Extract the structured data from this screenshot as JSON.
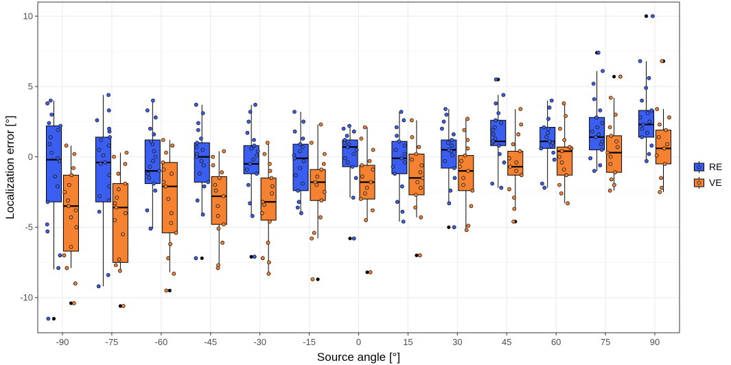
{
  "chart_data": {
    "type": "box",
    "title": "",
    "xlabel": "Source angle [°]",
    "ylabel": "Localization error [°]",
    "ylim": [
      -12.5,
      11
    ],
    "yticks": [
      -10,
      -5,
      0,
      5,
      10
    ],
    "grid": true,
    "legend_position": "right",
    "categories": [
      "-90",
      "-75",
      "-60",
      "-45",
      "-30",
      "-15",
      "0",
      "15",
      "30",
      "45",
      "60",
      "75",
      "90"
    ],
    "series": [
      {
        "name": "RE",
        "color": "#3a5ef0",
        "boxes": [
          {
            "min": -8.0,
            "q1": -3.2,
            "median": -0.2,
            "q3": 2.2,
            "max": 4.0,
            "outliers": [
              -11.5
            ]
          },
          {
            "min": -9.2,
            "q1": -3.2,
            "median": -0.4,
            "q3": 1.4,
            "max": 4.4,
            "outliers": []
          },
          {
            "min": -5.1,
            "q1": -1.9,
            "median": -1.0,
            "q3": 1.2,
            "max": 4.0,
            "outliers": []
          },
          {
            "min": -4.1,
            "q1": -1.8,
            "median": 0.0,
            "q3": 1.0,
            "max": 3.7,
            "outliers": [
              -7.2
            ]
          },
          {
            "min": -4.2,
            "q1": -1.2,
            "median": -0.5,
            "q3": 0.8,
            "max": 3.7,
            "outliers": [
              -7.1
            ]
          },
          {
            "min": -4.0,
            "q1": -2.4,
            "median": -0.1,
            "q3": 0.9,
            "max": 3.2,
            "outliers": []
          },
          {
            "min": -2.9,
            "q1": -0.7,
            "median": 0.7,
            "q3": 1.2,
            "max": 2.2,
            "outliers": [
              -5.8
            ]
          },
          {
            "min": -4.6,
            "q1": -1.2,
            "median": -0.1,
            "q3": 1.1,
            "max": 3.2,
            "outliers": []
          },
          {
            "min": -3.3,
            "q1": -0.8,
            "median": 0.5,
            "q3": 1.2,
            "max": 3.4,
            "outliers": [
              -5.0
            ]
          },
          {
            "min": -2.2,
            "q1": 0.8,
            "median": 1.1,
            "q3": 2.6,
            "max": 4.4,
            "outliers": [
              5.5
            ]
          },
          {
            "min": -2.2,
            "q1": 0.6,
            "median": 1.1,
            "q3": 2.1,
            "max": 4.0,
            "outliers": []
          },
          {
            "min": -1.0,
            "q1": 0.5,
            "median": 1.4,
            "q3": 2.8,
            "max": 6.1,
            "outliers": [
              7.4
            ]
          },
          {
            "min": -0.3,
            "q1": 1.4,
            "median": 2.3,
            "q3": 3.3,
            "max": 6.8,
            "outliers": [
              10.0
            ]
          }
        ],
        "points": [
          [
            -11.5,
            -7.9,
            -7.0,
            -5.3,
            -4.8,
            -3.2,
            -2.1,
            -1.4,
            -0.3,
            -0.1,
            0.3,
            0.9,
            1.4,
            1.9,
            2.2,
            2.4,
            3.0,
            3.8,
            4.0
          ],
          [
            -9.2,
            -8.4,
            -3.9,
            -3.1,
            -2.8,
            -2.1,
            -1.3,
            -0.5,
            -0.4,
            0.1,
            0.5,
            0.8,
            1.2,
            1.4,
            1.8,
            2.0,
            2.6,
            3.3,
            4.4
          ],
          [
            -5.1,
            -3.8,
            -2.4,
            -1.9,
            -1.5,
            -1.2,
            -1.0,
            -0.7,
            -0.3,
            0.0,
            0.4,
            0.9,
            1.1,
            1.6,
            2.0,
            2.8,
            3.3,
            4.0
          ],
          [
            -7.2,
            -4.1,
            -3.1,
            -2.1,
            -1.8,
            -1.2,
            -0.6,
            -0.3,
            0.0,
            0.2,
            0.5,
            0.7,
            1.0,
            1.3,
            1.9,
            2.4,
            3.1,
            3.7
          ],
          [
            -7.1,
            -4.2,
            -3.3,
            -2.0,
            -1.2,
            -0.9,
            -0.5,
            -0.2,
            0.1,
            0.4,
            0.6,
            0.8,
            1.2,
            1.7,
            2.5,
            3.2,
            3.7
          ],
          [
            -4.0,
            -3.6,
            -3.2,
            -2.4,
            -1.9,
            -1.3,
            -0.8,
            -0.3,
            -0.1,
            0.1,
            0.4,
            0.7,
            0.9,
            1.3,
            1.8,
            2.5,
            3.2
          ],
          [
            -5.8,
            -2.9,
            -1.5,
            -0.7,
            -0.4,
            -0.1,
            0.2,
            0.5,
            0.7,
            0.9,
            1.0,
            1.2,
            1.5,
            1.8,
            2.0,
            2.2
          ],
          [
            -4.6,
            -3.9,
            -3.2,
            -2.1,
            -1.2,
            -0.7,
            -0.4,
            -0.1,
            0.2,
            0.5,
            0.8,
            1.1,
            1.5,
            2.1,
            2.6,
            3.2
          ],
          [
            -5.0,
            -3.3,
            -2.4,
            -1.5,
            -0.8,
            -0.3,
            0.1,
            0.4,
            0.5,
            0.8,
            1.0,
            1.2,
            1.6,
            2.0,
            2.5,
            3.0,
            3.4
          ],
          [
            -2.2,
            -1.9,
            -0.4,
            0.2,
            0.8,
            1.0,
            1.1,
            1.3,
            1.6,
            1.9,
            2.1,
            2.4,
            2.6,
            3.1,
            3.8,
            4.4,
            5.5
          ],
          [
            -2.2,
            -1.9,
            -0.2,
            0.3,
            0.6,
            0.8,
            1.0,
            1.1,
            1.4,
            1.7,
            2.0,
            2.1,
            2.7,
            3.5,
            4.0
          ],
          [
            -1.0,
            -0.6,
            -0.1,
            0.5,
            0.9,
            1.1,
            1.4,
            1.6,
            1.8,
            2.1,
            2.4,
            2.8,
            3.3,
            4.1,
            5.2,
            6.1,
            7.4
          ],
          [
            -0.3,
            0.2,
            0.8,
            1.4,
            1.7,
            2.0,
            2.3,
            2.5,
            2.8,
            3.1,
            3.3,
            4.0,
            4.9,
            5.6,
            6.8,
            10.0
          ]
        ]
      },
      {
        "name": "VE",
        "color": "#f58231",
        "boxes": [
          {
            "min": -7.9,
            "q1": -6.7,
            "median": -3.5,
            "q3": -1.3,
            "max": 0.8,
            "outliers": [
              -10.4
            ]
          },
          {
            "min": -8.1,
            "q1": -7.5,
            "median": -3.6,
            "q3": -1.9,
            "max": 0.3,
            "outliers": [
              -10.6
            ]
          },
          {
            "min": -8.2,
            "q1": -5.4,
            "median": -2.1,
            "q3": -0.4,
            "max": 1.2,
            "outliers": [
              -9.5
            ]
          },
          {
            "min": -7.8,
            "q1": -4.8,
            "median": -2.8,
            "q3": -1.4,
            "max": 0.4,
            "outliers": []
          },
          {
            "min": -8.3,
            "q1": -4.5,
            "median": -3.2,
            "q3": -1.5,
            "max": 1.0,
            "outliers": []
          },
          {
            "min": -5.8,
            "q1": -3.1,
            "median": -1.8,
            "q3": -0.9,
            "max": 2.3,
            "outliers": [
              -8.7
            ]
          },
          {
            "min": -4.5,
            "q1": -3.0,
            "median": -1.8,
            "q3": -0.6,
            "max": 2.1,
            "outliers": [
              -8.2
            ]
          },
          {
            "min": -4.3,
            "q1": -2.7,
            "median": -1.5,
            "q3": 0.2,
            "max": 2.6,
            "outliers": [
              -7.0
            ]
          },
          {
            "min": -5.2,
            "q1": -2.4,
            "median": -1.0,
            "q3": 0.1,
            "max": 2.7,
            "outliers": []
          },
          {
            "min": -3.7,
            "q1": -1.3,
            "median": -0.7,
            "q3": 0.4,
            "max": 3.4,
            "outliers": [
              -4.6
            ]
          },
          {
            "min": -3.3,
            "q1": -1.3,
            "median": 0.4,
            "q3": 0.7,
            "max": 3.8,
            "outliers": []
          },
          {
            "min": -2.4,
            "q1": -1.1,
            "median": 0.3,
            "q3": 1.5,
            "max": 4.2,
            "outliers": [
              5.7
            ]
          },
          {
            "min": -2.5,
            "q1": -0.5,
            "median": 0.6,
            "q3": 1.9,
            "max": 3.4,
            "outliers": [
              6.8
            ]
          }
        ],
        "points": [
          [
            -10.4,
            -9.0,
            -7.9,
            -7.0,
            -6.4,
            -5.0,
            -4.3,
            -3.8,
            -3.5,
            -3.1,
            -2.5,
            -2.0,
            -1.3,
            -0.8,
            0.2,
            0.8
          ],
          [
            -10.6,
            -8.1,
            -7.7,
            -7.3,
            -5.5,
            -4.5,
            -4.0,
            -3.6,
            -3.3,
            -2.9,
            -2.3,
            -1.9,
            -1.2,
            -0.5,
            0.0,
            0.3
          ],
          [
            -9.5,
            -8.3,
            -7.2,
            -6.2,
            -5.4,
            -4.7,
            -4.0,
            -3.0,
            -2.1,
            -1.8,
            -1.2,
            -0.9,
            -0.4,
            0.3,
            0.8,
            1.2
          ],
          [
            -7.9,
            -7.7,
            -6.1,
            -5.1,
            -4.8,
            -4.2,
            -3.5,
            -2.8,
            -2.4,
            -2.0,
            -1.5,
            -1.1,
            -0.6,
            0.0,
            0.4
          ],
          [
            -8.3,
            -7.5,
            -7.2,
            -6.1,
            -4.6,
            -4.0,
            -3.4,
            -3.2,
            -2.6,
            -2.1,
            -1.5,
            -1.0,
            -0.5,
            0.2,
            1.0
          ],
          [
            -8.7,
            -5.8,
            -5.4,
            -4.3,
            -3.1,
            -2.5,
            -2.0,
            -1.8,
            -1.4,
            -0.9,
            -0.5,
            0.2,
            1.0,
            2.3
          ],
          [
            -8.2,
            -4.5,
            -3.8,
            -3.0,
            -2.6,
            -2.2,
            -1.8,
            -1.4,
            -0.9,
            -0.6,
            -0.3,
            0.5,
            1.3,
            2.1
          ],
          [
            -7.0,
            -4.3,
            -3.6,
            -2.7,
            -2.2,
            -1.8,
            -1.5,
            -1.1,
            -0.6,
            -0.2,
            0.2,
            0.7,
            1.4,
            2.6
          ],
          [
            -5.2,
            -4.9,
            -3.5,
            -2.4,
            -2.0,
            -1.5,
            -1.0,
            -0.7,
            -0.3,
            0.1,
            0.6,
            1.2,
            1.9,
            2.7
          ],
          [
            -4.6,
            -3.7,
            -2.9,
            -2.3,
            -1.3,
            -1.0,
            -0.7,
            -0.4,
            -0.1,
            0.4,
            0.9,
            1.6,
            2.3,
            3.4
          ],
          [
            -3.3,
            -2.6,
            -2.0,
            -1.3,
            -0.9,
            -0.4,
            0.0,
            0.4,
            0.6,
            0.7,
            1.2,
            2.0,
            2.9,
            3.8
          ],
          [
            -2.4,
            -2.0,
            -1.6,
            -1.1,
            -0.5,
            0.0,
            0.3,
            0.7,
            1.1,
            1.5,
            2.1,
            3.0,
            4.2,
            5.7
          ],
          [
            -2.5,
            -2.2,
            -1.5,
            -0.5,
            0.1,
            0.6,
            0.9,
            1.4,
            1.9,
            2.3,
            2.8,
            3.4,
            6.8
          ]
        ]
      }
    ]
  }
}
